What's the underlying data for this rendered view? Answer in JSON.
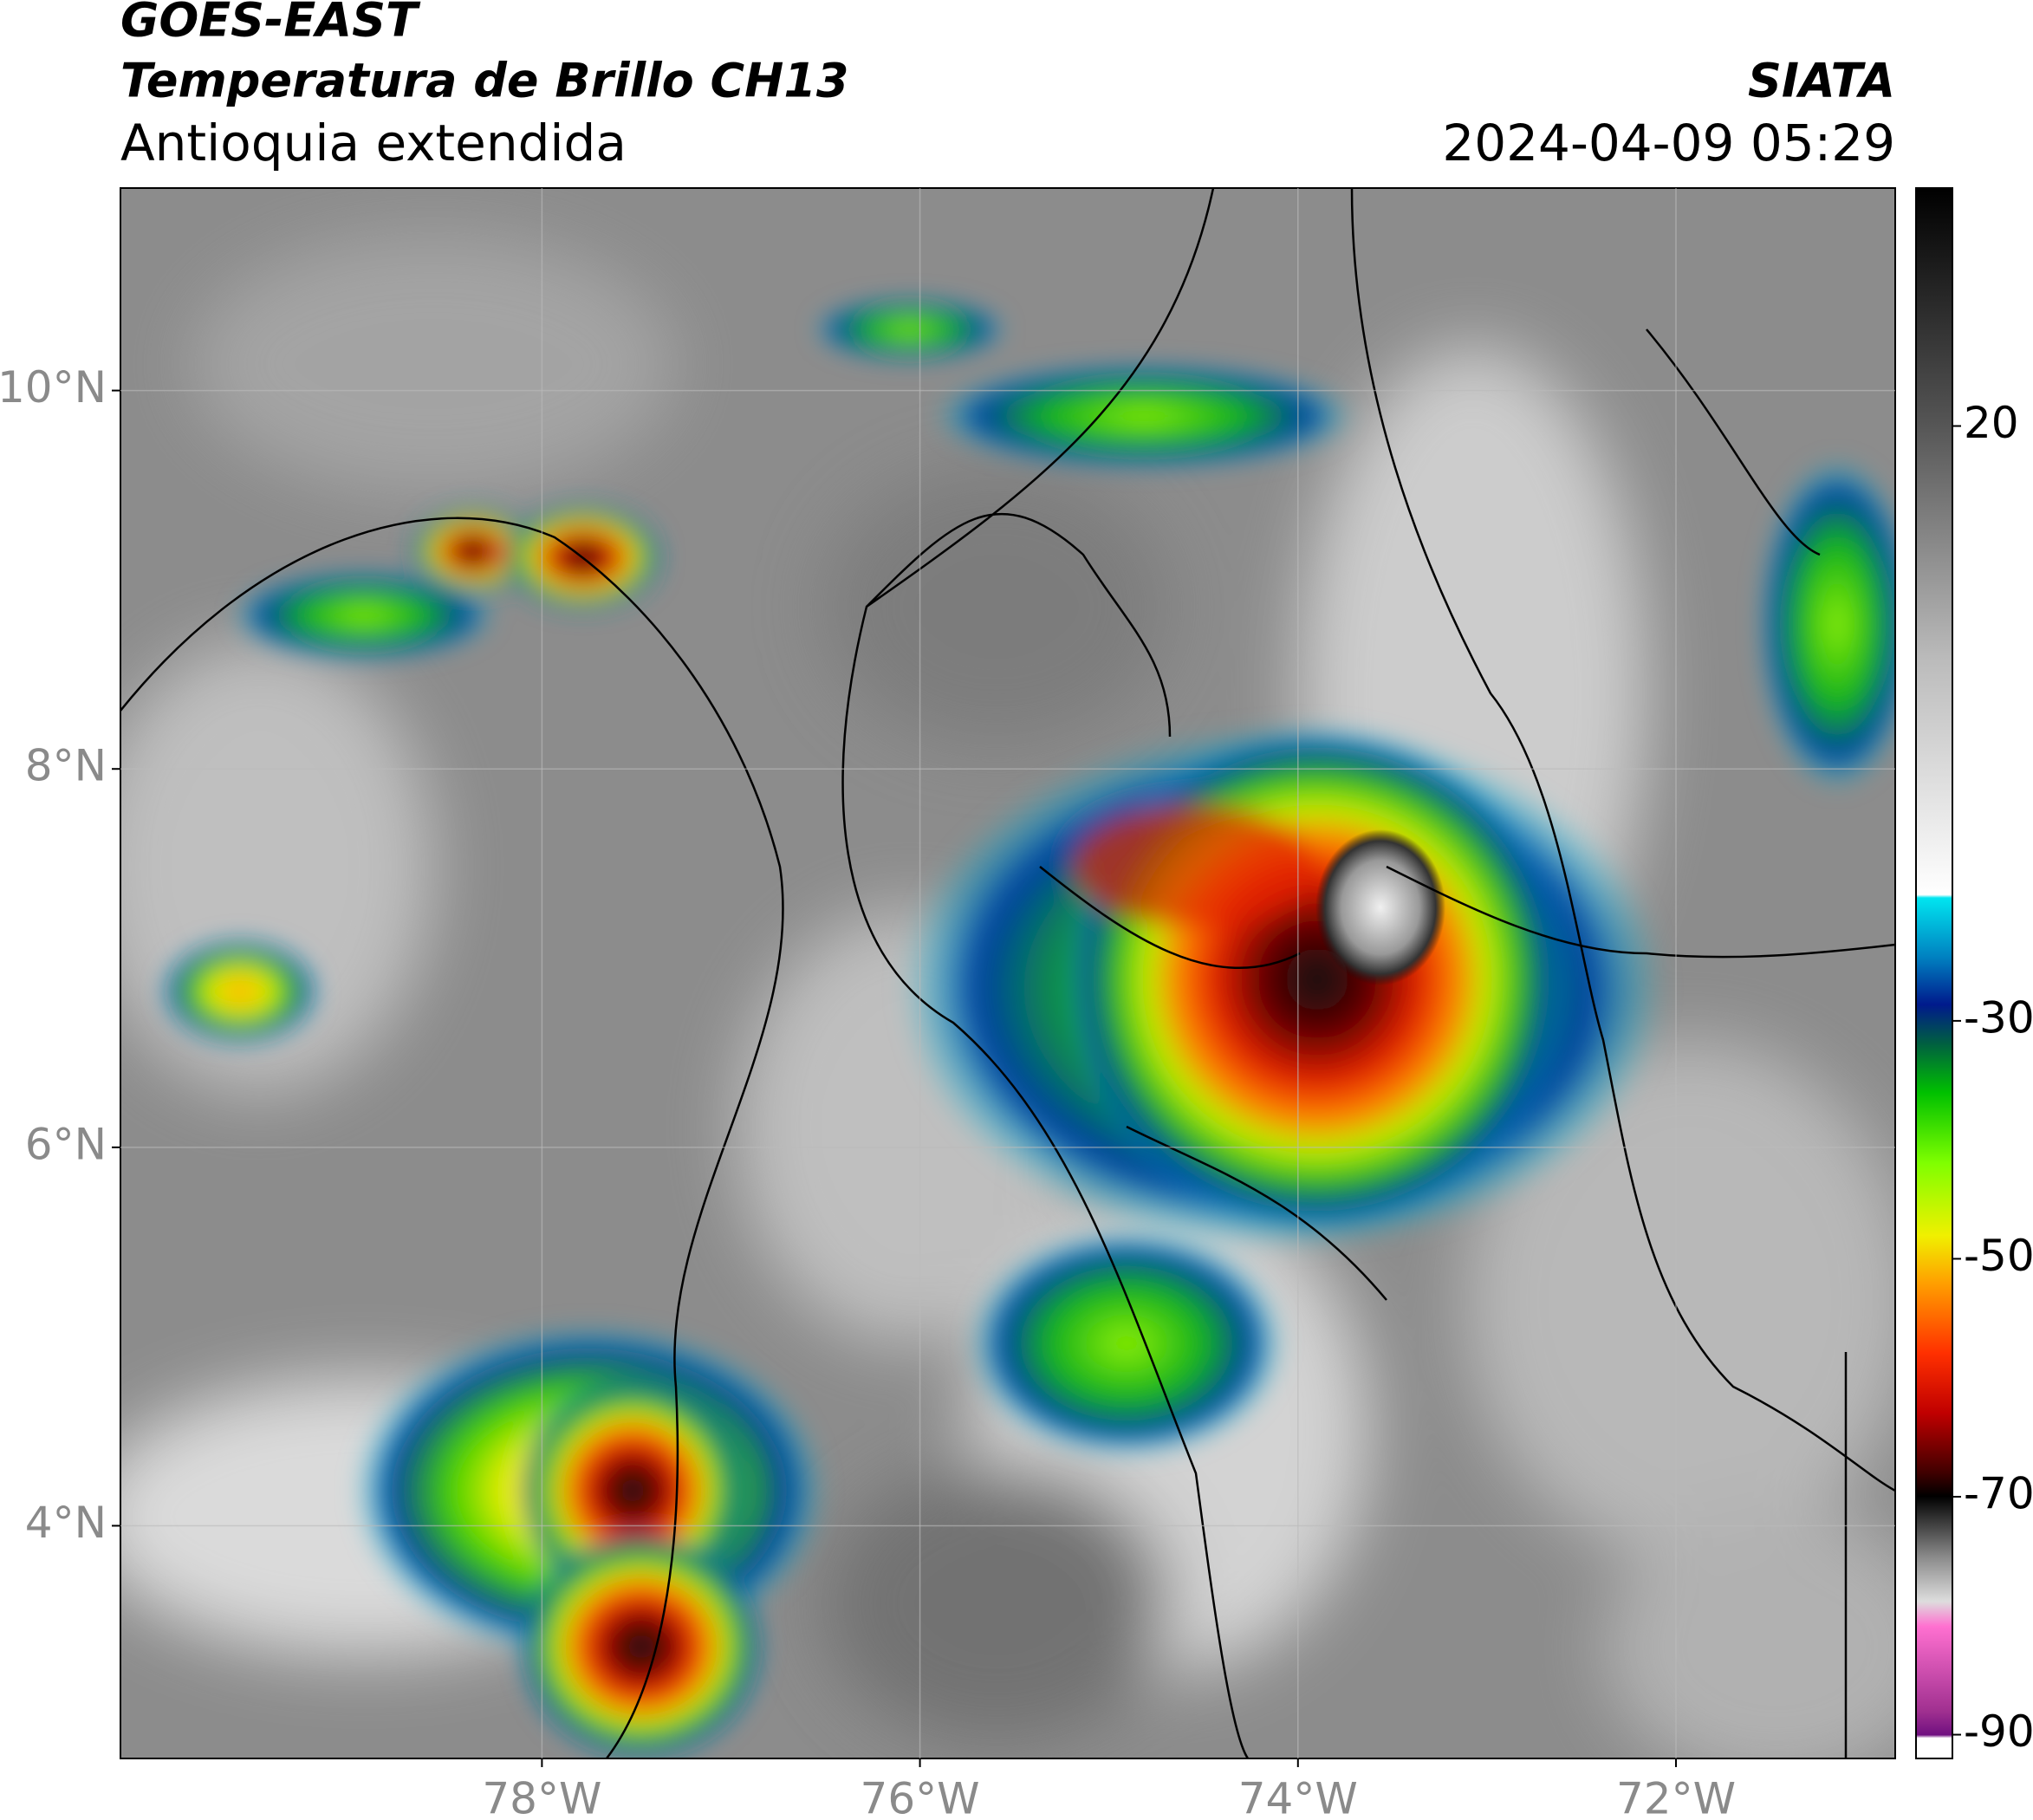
{
  "header": {
    "title": "GOES-EAST",
    "subtitle": "Temperatura de Brillo CH13",
    "region": "Antioquia extendida",
    "source": "SIATA",
    "datetime": "2024-04-09 05:29"
  },
  "map": {
    "xlim": [
      -80.23,
      -70.84
    ],
    "ylim": [
      2.77,
      11.07
    ],
    "xticks": [
      {
        "value": -78,
        "label": "78°W"
      },
      {
        "value": -76,
        "label": "76°W"
      },
      {
        "value": -74,
        "label": "74°W"
      },
      {
        "value": -72,
        "label": "72°W"
      }
    ],
    "yticks": [
      {
        "value": 10,
        "label": "10°N"
      },
      {
        "value": 8,
        "label": "8°N"
      },
      {
        "value": 6,
        "label": "6°N"
      },
      {
        "value": 4,
        "label": "4°N"
      }
    ],
    "grid": true
  },
  "colorbar": {
    "clim": [
      -92,
      40
    ],
    "ticks": [
      20,
      -30,
      -50,
      -70,
      -90
    ]
  }
}
